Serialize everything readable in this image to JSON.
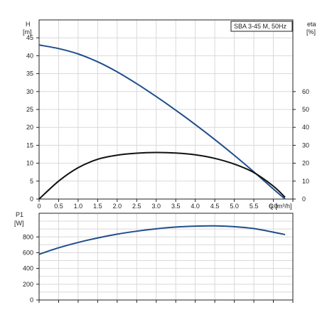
{
  "chart_data": [
    {
      "type": "line",
      "legend": "SBA 3-45 M, 50Hz",
      "xlabel": "Q [m³/h]",
      "x_ticks": [
        "0",
        "0.5",
        "1.0",
        "1.5",
        "2.0",
        "2.5",
        "3.0",
        "3.5",
        "4.0",
        "4.5",
        "5.0",
        "5.5",
        "6.0"
      ],
      "xlim": [
        0,
        6.5
      ],
      "grid": true,
      "y_left": {
        "label_line1": "H",
        "label_line2": "[m]",
        "ylim": [
          0,
          50
        ],
        "ticks": [
          "0",
          "5",
          "10",
          "15",
          "20",
          "25",
          "30",
          "35",
          "40",
          "45"
        ]
      },
      "y_right": {
        "label_line1": "eta",
        "label_line2": "[%]",
        "ylim": [
          0,
          100
        ],
        "ticks": [
          "0",
          "10",
          "20",
          "30",
          "40",
          "50",
          "60"
        ]
      },
      "series": [
        {
          "axis": "left",
          "color": "#1f4e8c",
          "x": [
            0,
            0.5,
            1.0,
            1.5,
            2.0,
            2.5,
            3.0,
            3.5,
            4.0,
            4.5,
            5.0,
            5.5,
            6.0,
            6.3
          ],
          "y": [
            43,
            42,
            40.5,
            38.3,
            35.5,
            32.2,
            28.6,
            24.8,
            20.8,
            16.6,
            12.2,
            7.6,
            2.8,
            0
          ]
        },
        {
          "axis": "right",
          "color": "#111111",
          "x": [
            0,
            0.5,
            1.0,
            1.5,
            2.0,
            2.5,
            3.0,
            3.5,
            4.0,
            4.5,
            5.0,
            5.5,
            6.0,
            6.3
          ],
          "y": [
            0,
            10,
            17.5,
            22.2,
            24.5,
            25.6,
            26,
            25.7,
            24.7,
            22.7,
            19.5,
            14.8,
            7.2,
            1
          ]
        }
      ]
    },
    {
      "type": "line",
      "xlim": [
        0,
        6.5
      ],
      "grid": true,
      "y_left": {
        "label_line1": "P1",
        "label_line2": "[W]",
        "ylim": [
          0,
          1100
        ],
        "ticks": [
          "0",
          "200",
          "400",
          "600",
          "800"
        ]
      },
      "series": [
        {
          "axis": "left",
          "color": "#1f4e8c",
          "x": [
            0,
            0.5,
            1.0,
            1.5,
            2.0,
            2.5,
            3.0,
            3.5,
            4.0,
            4.5,
            5.0,
            5.5,
            6.0,
            6.3
          ],
          "y": [
            580,
            662,
            730,
            787,
            835,
            873,
            903,
            925,
            937,
            940,
            930,
            906,
            860,
            830
          ]
        }
      ]
    }
  ]
}
